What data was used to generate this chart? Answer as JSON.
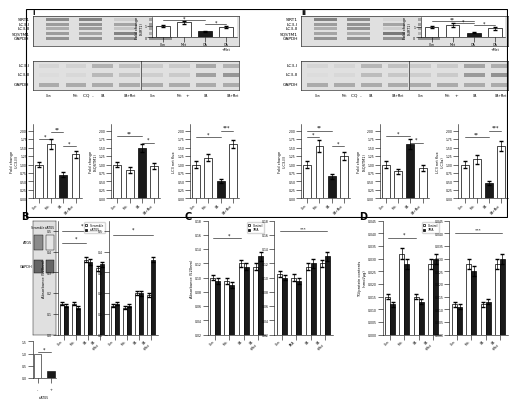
{
  "sirt1_bar_values_i": [
    1.0,
    1.35,
    0.55,
    0.9
  ],
  "sirt1_bar_errors_i": [
    0.08,
    0.12,
    0.06,
    0.08
  ],
  "sirt1_bar_values_ii": [
    1.0,
    1.2,
    0.45,
    0.85
  ],
  "sirt1_bar_errors_ii": [
    0.1,
    0.18,
    0.07,
    0.12
  ],
  "lc3ii_values_i": [
    1.0,
    1.6,
    0.7,
    1.3
  ],
  "lc3ii_errors_i": [
    0.08,
    0.15,
    0.07,
    0.1
  ],
  "sqstm1_values_i": [
    1.0,
    0.85,
    1.5,
    0.95
  ],
  "sqstm1_errors_i": [
    0.08,
    0.09,
    0.12,
    0.09
  ],
  "lc3flux_values_i": [
    1.0,
    1.2,
    0.5,
    1.6
  ],
  "lc3flux_errors_i": [
    0.09,
    0.1,
    0.06,
    0.12
  ],
  "lc3ii_values_ii": [
    1.0,
    1.55,
    0.65,
    1.25
  ],
  "lc3ii_errors_ii": [
    0.1,
    0.18,
    0.08,
    0.12
  ],
  "sqstm1_values_ii": [
    1.0,
    0.8,
    1.6,
    0.9
  ],
  "sqstm1_errors_ii": [
    0.09,
    0.08,
    0.15,
    0.1
  ],
  "lc3flux_values_ii": [
    1.0,
    1.15,
    0.45,
    1.55
  ],
  "lc3flux_errors_ii": [
    0.1,
    0.12,
    0.05,
    0.14
  ],
  "panel_B_scramble": [
    0.15,
    0.15,
    0.36,
    0.32
  ],
  "panel_B_scramble_err": [
    0.008,
    0.008,
    0.012,
    0.012
  ],
  "panel_B_siatg5": [
    0.14,
    0.13,
    0.35,
    0.34
  ],
  "panel_B_siatg5_err": [
    0.008,
    0.008,
    0.015,
    0.012
  ],
  "panel_B_scramble2": [
    0.14,
    0.13,
    0.2,
    0.19
  ],
  "panel_B_scramble2_err": [
    0.008,
    0.008,
    0.01,
    0.01
  ],
  "panel_B_siatg5_2": [
    0.15,
    0.14,
    0.2,
    0.36
  ],
  "panel_B_siatg5_2_err": [
    0.009,
    0.008,
    0.012,
    0.012
  ],
  "panel_C_control": [
    0.1,
    0.095,
    0.12,
    0.115
  ],
  "panel_C_control_err": [
    0.004,
    0.004,
    0.005,
    0.005
  ],
  "panel_C_3ma": [
    0.095,
    0.09,
    0.115,
    0.13
  ],
  "panel_C_3ma_err": [
    0.004,
    0.004,
    0.005,
    0.006
  ],
  "panel_C_control2": [
    0.105,
    0.1,
    0.115,
    0.12
  ],
  "panel_C_control2_err": [
    0.004,
    0.005,
    0.005,
    0.005
  ],
  "panel_C_3ma2": [
    0.1,
    0.095,
    0.12,
    0.13
  ],
  "panel_C_3ma2_err": [
    0.004,
    0.004,
    0.006,
    0.006
  ],
  "panel_D_control": [
    0.015,
    0.032,
    0.015,
    0.028
  ],
  "panel_D_control_err": [
    0.001,
    0.002,
    0.001,
    0.002
  ],
  "panel_D_3ma": [
    0.012,
    0.028,
    0.013,
    0.03
  ],
  "panel_D_3ma_err": [
    0.001,
    0.002,
    0.001,
    0.002
  ],
  "panel_D_control2": [
    0.012,
    0.028,
    0.012,
    0.028
  ],
  "panel_D_control2_err": [
    0.001,
    0.002,
    0.001,
    0.002
  ],
  "panel_D_3ma2": [
    0.011,
    0.025,
    0.013,
    0.03
  ],
  "panel_D_3ma2_err": [
    0.001,
    0.002,
    0.001,
    0.002
  ],
  "bar_color_white": "#ffffff",
  "bar_color_black": "#1a1a1a",
  "bar_edge_color": "#000000",
  "background_color": "#ffffff"
}
